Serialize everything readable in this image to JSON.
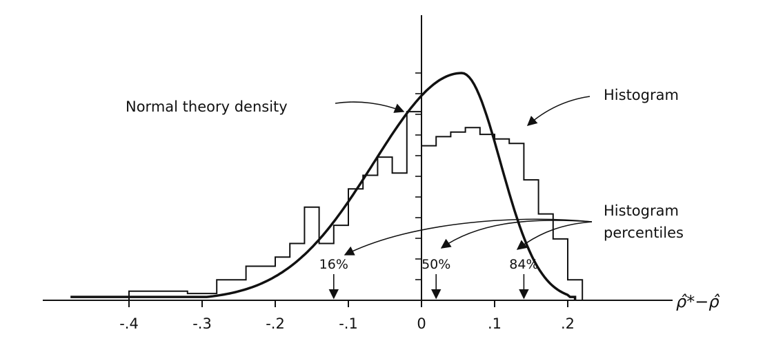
{
  "chart_data": {
    "type": "bar",
    "title": "",
    "xlabel": "ρ̂*−ρ̂",
    "ylabel": "",
    "xlim": [
      -0.5,
      0.25
    ],
    "ylim": [
      0,
      1
    ],
    "grid": false,
    "x_ticks": [
      {
        "value": -0.4,
        "label": "-.4"
      },
      {
        "value": -0.3,
        "label": "-.3"
      },
      {
        "value": -0.2,
        "label": "-.2"
      },
      {
        "value": -0.1,
        "label": "-.1"
      },
      {
        "value": 0.0,
        "label": "0"
      },
      {
        "value": 0.1,
        "label": ".1"
      },
      {
        "value": 0.2,
        "label": ".2"
      }
    ],
    "histogram": {
      "bin_width": 0.02,
      "bin_starts": [
        -0.4,
        -0.38,
        -0.36,
        -0.34,
        -0.32,
        -0.3,
        -0.28,
        -0.26,
        -0.24,
        -0.22,
        -0.2,
        -0.18,
        -0.16,
        -0.14,
        -0.12,
        -0.1,
        -0.08,
        -0.06,
        -0.04,
        -0.02,
        0.0,
        0.02,
        0.04,
        0.06,
        0.08,
        0.1,
        0.12,
        0.14,
        0.16,
        0.18,
        0.2
      ],
      "heights": [
        0.04,
        0.04,
        0.04,
        0.04,
        0.03,
        0.03,
        0.09,
        0.09,
        0.15,
        0.15,
        0.19,
        0.25,
        0.41,
        0.25,
        0.33,
        0.49,
        0.55,
        0.63,
        0.56,
        0.83,
        0.68,
        0.72,
        0.74,
        0.76,
        0.73,
        0.71,
        0.69,
        0.53,
        0.38,
        0.27,
        0.09
      ]
    },
    "normal_density": {
      "mean": 0.055,
      "sd_left": 0.12,
      "sd_right": 0.053,
      "peak": 1.0,
      "x_start": -0.48,
      "x_end": 0.21
    },
    "annotations": {
      "normal_theory_density": "Normal theory density",
      "histogram": "Histogram",
      "histogram_percentiles_line1": "Histogram",
      "histogram_percentiles_line2": "percentiles"
    },
    "percentiles": [
      {
        "label": "16%",
        "value": -0.12
      },
      {
        "label": "50%",
        "value": 0.02
      },
      {
        "label": "84%",
        "value": 0.14
      }
    ]
  }
}
